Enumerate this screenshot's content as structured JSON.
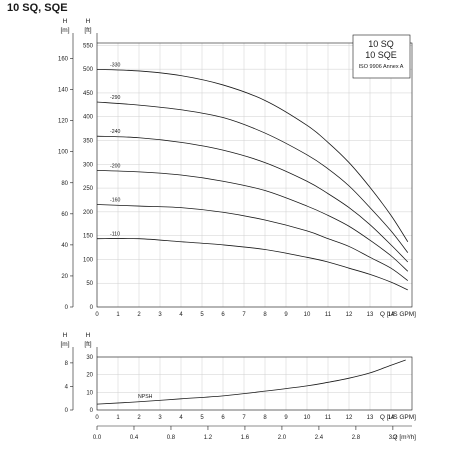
{
  "page_title": "10 SQ, SQE",
  "legend_box": {
    "line1": "10 SQ",
    "line2": "10 SQE",
    "line3": "ISO 9906 Annex A"
  },
  "chart_data": [
    {
      "type": "line",
      "title": "",
      "xlabel": "Q [US GPM]",
      "ylabel_left": "H [m]",
      "ylabel_right": "H [ft]",
      "x_ticks": [
        0,
        1,
        2,
        3,
        4,
        5,
        6,
        7,
        8,
        9,
        10,
        11,
        12,
        13,
        14
      ],
      "xlim": [
        0,
        15
      ],
      "ylim_m": [
        0,
        170
      ],
      "m_ticks": [
        0,
        20,
        40,
        60,
        80,
        100,
        120,
        140,
        160
      ],
      "ylim_ft": [
        0,
        555
      ],
      "ft_ticks": [
        0,
        50,
        100,
        150,
        200,
        250,
        300,
        350,
        400,
        450,
        500,
        550
      ],
      "grid": true,
      "series": [
        {
          "name": "-330",
          "points": [
            [
              0,
              153
            ],
            [
              2,
              152
            ],
            [
              4,
              149
            ],
            [
              6,
              143
            ],
            [
              8,
              133
            ],
            [
              10,
              117
            ],
            [
              11,
              106
            ],
            [
              12,
              93
            ],
            [
              13,
              77
            ],
            [
              14,
              59
            ],
            [
              14.8,
              42
            ]
          ]
        },
        {
          "name": "-290",
          "points": [
            [
              0,
              132
            ],
            [
              2,
              130
            ],
            [
              4,
              127
            ],
            [
              6,
              122
            ],
            [
              8,
              112
            ],
            [
              10,
              98
            ],
            [
              11,
              89
            ],
            [
              12,
              78
            ],
            [
              13,
              64
            ],
            [
              14,
              49
            ],
            [
              14.8,
              35
            ]
          ]
        },
        {
          "name": "-240",
          "points": [
            [
              0,
              110
            ],
            [
              2,
              109
            ],
            [
              4,
              106
            ],
            [
              6,
              101
            ],
            [
              8,
              93
            ],
            [
              10,
              81
            ],
            [
              11,
              73
            ],
            [
              12,
              64
            ],
            [
              13,
              53
            ],
            [
              14,
              40
            ],
            [
              14.8,
              29
            ]
          ]
        },
        {
          "name": "-200",
          "points": [
            [
              0,
              88
            ],
            [
              2,
              87
            ],
            [
              4,
              85
            ],
            [
              6,
              81
            ],
            [
              8,
              75
            ],
            [
              10,
              65
            ],
            [
              11,
              59
            ],
            [
              12,
              52
            ],
            [
              13,
              43
            ],
            [
              14,
              33
            ],
            [
              14.8,
              23
            ]
          ]
        },
        {
          "name": "-160",
          "points": [
            [
              0,
              66
            ],
            [
              2,
              65
            ],
            [
              4,
              64
            ],
            [
              6,
              61
            ],
            [
              8,
              56
            ],
            [
              10,
              49
            ],
            [
              11,
              44
            ],
            [
              12,
              39
            ],
            [
              13,
              32
            ],
            [
              14,
              25
            ],
            [
              14.8,
              17
            ]
          ]
        },
        {
          "name": "-110",
          "points": [
            [
              0,
              44
            ],
            [
              2,
              44
            ],
            [
              4,
              42
            ],
            [
              6,
              40
            ],
            [
              8,
              37
            ],
            [
              10,
              32
            ],
            [
              11,
              29
            ],
            [
              12,
              25
            ],
            [
              13,
              21
            ],
            [
              14,
              16
            ],
            [
              14.8,
              11
            ]
          ]
        }
      ]
    },
    {
      "type": "line",
      "title": "",
      "xlabel": "Q [US GPM]",
      "ylabel_left": "H [m]",
      "ylabel_right": "H [ft]",
      "x_ticks": [
        0,
        1,
        2,
        3,
        4,
        5,
        6,
        7,
        8,
        9,
        10,
        11,
        12,
        13,
        14
      ],
      "xlim": [
        0,
        15
      ],
      "ylim_m": [
        0,
        9
      ],
      "m_ticks": [
        0,
        4,
        8
      ],
      "ylim_ft": [
        0,
        30
      ],
      "ft_ticks": [
        0,
        10,
        20,
        30
      ],
      "grid": true,
      "series": [
        {
          "name": "NPSH",
          "points": [
            [
              0,
              1.0
            ],
            [
              2,
              1.4
            ],
            [
              4,
              1.9
            ],
            [
              6,
              2.4
            ],
            [
              8,
              3.2
            ],
            [
              10,
              4.1
            ],
            [
              11,
              4.7
            ],
            [
              12,
              5.4
            ],
            [
              13,
              6.3
            ],
            [
              14,
              7.6
            ],
            [
              14.7,
              8.5
            ]
          ]
        }
      ]
    }
  ],
  "secondary_axis": {
    "label": "Q [m³/h]",
    "ticks": [
      0.0,
      0.4,
      0.8,
      1.2,
      1.6,
      2.0,
      2.4,
      2.8,
      3.2
    ],
    "tick_labels": [
      "0.0",
      "0.4",
      "0.8",
      "1.2",
      "1.6",
      "2.0",
      "2.4",
      "2.8",
      "3.2"
    ],
    "gpm_per_unit": 4.403
  }
}
